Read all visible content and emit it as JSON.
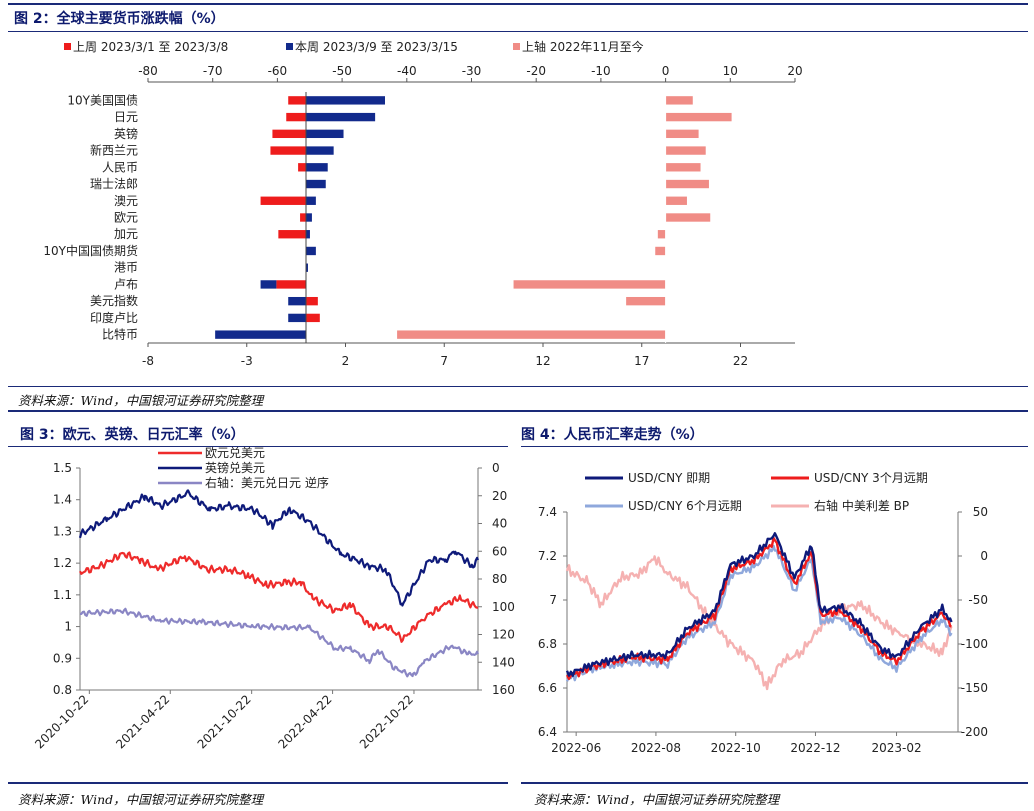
{
  "fig2": {
    "title": "图 2：全球主要货币涨跌幅（%）",
    "source": "资料来源：Wind，中国银河证券研究院整理"
  },
  "fig3": {
    "title": "图 3：欧元、英镑、日元汇率（%）",
    "source": "资料来源：Wind，中国银河证券研究院整理"
  },
  "fig4": {
    "title": "图 4：人民币汇率走势（%）",
    "source": "资料来源：Wind，中国银河证券研究院整理"
  },
  "chart_data": [
    {
      "id": "fig2",
      "type": "bar",
      "orientation": "horizontal",
      "categories": [
        "10Y美国国债",
        "日元",
        "英镑",
        "新西兰元",
        "人民币",
        "瑞士法郎",
        "澳元",
        "欧元",
        "加元",
        "10Y中国国债期货",
        "港币",
        "卢布",
        "美元指数",
        "印度卢比",
        "比特币"
      ],
      "series": [
        {
          "name": "上周 2023/3/1 至 2023/3/8",
          "axis": "bottom",
          "color": "#ee1c1c",
          "values": [
            -0.9,
            -1.0,
            -1.7,
            -1.8,
            -0.4,
            0,
            -2.3,
            -0.3,
            -1.4,
            0,
            0,
            -1.5,
            0.6,
            0.7,
            0
          ]
        },
        {
          "name": "本周 2023/3/9 至 2023/3/15",
          "axis": "bottom",
          "color": "#122a8c",
          "values": [
            4.0,
            3.5,
            1.9,
            1.4,
            1.1,
            1.0,
            0.5,
            0.3,
            0.2,
            0.5,
            0.1,
            -0.8,
            -0.9,
            -0.9,
            -4.6
          ]
        },
        {
          "name": "上轴 2022年11月至今",
          "axis": "top",
          "color": "#f08c86",
          "values": [
            4.2,
            10.2,
            5.1,
            6.2,
            5.4,
            6.7,
            3.3,
            6.9,
            -1.2,
            -1.6,
            0,
            -23.5,
            -6.1,
            0,
            -41.5
          ]
        }
      ],
      "xaxis_top": {
        "ticks": [
          -80,
          -70,
          -60,
          -50,
          -40,
          -30,
          -20,
          -10,
          0,
          10,
          20
        ],
        "range": [
          -80,
          20
        ]
      },
      "xaxis_bottom": {
        "ticks": [
          -8,
          -3,
          2,
          7,
          12,
          17,
          22
        ],
        "range": [
          -8,
          25
        ]
      },
      "legend": [
        "上周  2023/3/1  至  2023/3/8",
        "本周  2023/3/9  至  2023/3/15",
        "上轴  2022年11月至今"
      ],
      "legend_position": "top"
    },
    {
      "id": "fig3",
      "type": "line",
      "x": [
        "2020-10-22",
        "2021-04-22",
        "2021-10-22",
        "2022-04-22",
        "2022-10-22"
      ],
      "x_range": [
        "2020-10-01",
        "2023-03-15"
      ],
      "left_axis": {
        "ticks": [
          "0.8",
          "0.9",
          "1",
          "1.1",
          "1.2",
          "1.3",
          "1.4",
          "1.5"
        ],
        "range": [
          0.8,
          1.5
        ]
      },
      "right_axis": {
        "ticks": [
          "0",
          "20",
          "40",
          "60",
          "80",
          "100",
          "120",
          "140",
          "160"
        ],
        "range": [
          0,
          160
        ],
        "reversed": true
      },
      "series": [
        {
          "name": "欧元兑美元",
          "axis": "left",
          "color": "#ee2b2b",
          "points": [
            [
              "2020-10-01",
              1.17
            ],
            [
              "2020-11-15",
              1.19
            ],
            [
              "2021-01-05",
              1.23
            ],
            [
              "2021-02-15",
              1.21
            ],
            [
              "2021-03-25",
              1.18
            ],
            [
              "2021-05-25",
              1.22
            ],
            [
              "2021-07-15",
              1.18
            ],
            [
              "2021-09-05",
              1.18
            ],
            [
              "2021-10-15",
              1.16
            ],
            [
              "2021-11-25",
              1.13
            ],
            [
              "2022-01-10",
              1.14
            ],
            [
              "2022-02-10",
              1.14
            ],
            [
              "2022-03-08",
              1.09
            ],
            [
              "2022-04-28",
              1.05
            ],
            [
              "2022-06-01",
              1.07
            ],
            [
              "2022-07-14",
              1.0
            ],
            [
              "2022-08-25",
              1.0
            ],
            [
              "2022-09-27",
              0.96
            ],
            [
              "2022-11-15",
              1.03
            ],
            [
              "2023-01-01",
              1.07
            ],
            [
              "2023-02-02",
              1.09
            ],
            [
              "2023-03-15",
              1.06
            ]
          ]
        },
        {
          "name": "英镑兑美元",
          "axis": "left",
          "color": "#0e1a7a",
          "points": [
            [
              "2020-10-01",
              1.29
            ],
            [
              "2020-12-01",
              1.34
            ],
            [
              "2021-02-24",
              1.41
            ],
            [
              "2021-04-01",
              1.38
            ],
            [
              "2021-06-01",
              1.42
            ],
            [
              "2021-07-20",
              1.37
            ],
            [
              "2021-09-01",
              1.38
            ],
            [
              "2021-10-25",
              1.37
            ],
            [
              "2021-12-08",
              1.32
            ],
            [
              "2022-01-15",
              1.37
            ],
            [
              "2022-03-01",
              1.33
            ],
            [
              "2022-05-10",
              1.23
            ],
            [
              "2022-06-15",
              1.21
            ],
            [
              "2022-07-14",
              1.19
            ],
            [
              "2022-08-20",
              1.18
            ],
            [
              "2022-09-26",
              1.07
            ],
            [
              "2022-11-25",
              1.21
            ],
            [
              "2023-01-01",
              1.21
            ],
            [
              "2023-01-23",
              1.24
            ],
            [
              "2023-03-01",
              1.19
            ],
            [
              "2023-03-15",
              1.21
            ]
          ]
        },
        {
          "name": "右轴：美元兑日元 逆序",
          "axis": "right",
          "color": "#8a86c4",
          "points": [
            [
              "2020-10-01",
              105
            ],
            [
              "2021-01-05",
              103
            ],
            [
              "2021-04-01",
              110
            ],
            [
              "2021-07-01",
              111
            ],
            [
              "2021-10-25",
              114
            ],
            [
              "2022-01-05",
              115
            ],
            [
              "2022-03-01",
              115
            ],
            [
              "2022-04-28",
              130
            ],
            [
              "2022-06-01",
              130
            ],
            [
              "2022-07-14",
              139
            ],
            [
              "2022-08-02",
              131
            ],
            [
              "2022-09-07",
              144
            ],
            [
              "2022-10-20",
              150
            ],
            [
              "2022-11-15",
              139
            ],
            [
              "2023-01-16",
              128
            ],
            [
              "2023-02-20",
              134
            ],
            [
              "2023-03-15",
              134
            ]
          ]
        }
      ],
      "legend": [
        "欧元兑美元",
        "英镑兑美元",
        "右轴：美元兑日元 逆序"
      ],
      "legend_position": "top"
    },
    {
      "id": "fig4",
      "type": "line",
      "x": [
        "2022-06",
        "2022-08",
        "2022-10",
        "2022-12",
        "2023-02"
      ],
      "x_range": [
        "2022-05-25",
        "2023-03-20"
      ],
      "left_axis": {
        "ticks": [
          "6.4",
          "6.6",
          "6.8",
          "7",
          "7.2",
          "7.4"
        ],
        "range": [
          6.4,
          7.4
        ]
      },
      "right_axis": {
        "ticks": [
          "-200",
          "-150",
          "-100",
          "-50",
          "0",
          "50"
        ],
        "range": [
          -200,
          50
        ]
      },
      "series": [
        {
          "name": "USD/CNY 即期",
          "axis": "left",
          "color": "#0e1a7a",
          "points": [
            [
              "2022-05-25",
              6.66
            ],
            [
              "2022-06-15",
              6.71
            ],
            [
              "2022-07-15",
              6.75
            ],
            [
              "2022-08-10",
              6.75
            ],
            [
              "2022-08-25",
              6.87
            ],
            [
              "2022-09-15",
              6.95
            ],
            [
              "2022-09-27",
              7.16
            ],
            [
              "2022-10-15",
              7.2
            ],
            [
              "2022-10-31",
              7.3
            ],
            [
              "2022-11-15",
              7.1
            ],
            [
              "2022-11-28",
              7.25
            ],
            [
              "2022-12-05",
              6.95
            ],
            [
              "2022-12-20",
              6.97
            ],
            [
              "2023-01-05",
              6.89
            ],
            [
              "2023-01-20",
              6.78
            ],
            [
              "2023-02-01",
              6.74
            ],
            [
              "2023-02-20",
              6.88
            ],
            [
              "2023-03-08",
              6.96
            ],
            [
              "2023-03-15",
              6.9
            ]
          ]
        },
        {
          "name": "USD/CNY 3个月远期",
          "axis": "left",
          "color": "#ee1c1c",
          "points": [
            [
              "2022-05-25",
              6.65
            ],
            [
              "2022-06-15",
              6.7
            ],
            [
              "2022-07-15",
              6.74
            ],
            [
              "2022-08-10",
              6.73
            ],
            [
              "2022-08-25",
              6.85
            ],
            [
              "2022-09-15",
              6.93
            ],
            [
              "2022-09-27",
              7.14
            ],
            [
              "2022-10-15",
              7.18
            ],
            [
              "2022-10-31",
              7.27
            ],
            [
              "2022-11-15",
              7.07
            ],
            [
              "2022-11-28",
              7.22
            ],
            [
              "2022-12-05",
              6.93
            ],
            [
              "2022-12-20",
              6.95
            ],
            [
              "2023-01-05",
              6.87
            ],
            [
              "2023-01-20",
              6.76
            ],
            [
              "2023-02-01",
              6.72
            ],
            [
              "2023-02-20",
              6.86
            ],
            [
              "2023-03-08",
              6.94
            ],
            [
              "2023-03-15",
              6.88
            ]
          ]
        },
        {
          "name": "USD/CNY 6个月远期",
          "axis": "left",
          "color": "#8fa8dc",
          "points": [
            [
              "2022-05-25",
              6.64
            ],
            [
              "2022-06-15",
              6.69
            ],
            [
              "2022-07-15",
              6.72
            ],
            [
              "2022-08-10",
              6.71
            ],
            [
              "2022-08-25",
              6.83
            ],
            [
              "2022-09-15",
              6.9
            ],
            [
              "2022-09-27",
              7.11
            ],
            [
              "2022-10-15",
              7.15
            ],
            [
              "2022-10-31",
              7.24
            ],
            [
              "2022-11-15",
              7.04
            ],
            [
              "2022-11-28",
              7.19
            ],
            [
              "2022-12-05",
              6.9
            ],
            [
              "2022-12-20",
              6.92
            ],
            [
              "2023-01-05",
              6.84
            ],
            [
              "2023-01-20",
              6.73
            ],
            [
              "2023-02-01",
              6.69
            ],
            [
              "2023-02-20",
              6.83
            ],
            [
              "2023-03-08",
              6.91
            ],
            [
              "2023-03-15",
              6.85
            ]
          ]
        },
        {
          "name": "右轴 中美利差 BP",
          "axis": "right",
          "color": "#f5b1b1",
          "points": [
            [
              "2022-05-25",
              -15
            ],
            [
              "2022-06-10",
              -30
            ],
            [
              "2022-06-20",
              -55
            ],
            [
              "2022-07-05",
              -25
            ],
            [
              "2022-07-20",
              -20
            ],
            [
              "2022-07-31",
              -2
            ],
            [
              "2022-08-10",
              -20
            ],
            [
              "2022-08-25",
              -35
            ],
            [
              "2022-09-10",
              -70
            ],
            [
              "2022-09-27",
              -100
            ],
            [
              "2022-10-15",
              -120
            ],
            [
              "2022-10-25",
              -148
            ],
            [
              "2022-11-05",
              -120
            ],
            [
              "2022-11-20",
              -110
            ],
            [
              "2022-12-05",
              -80
            ],
            [
              "2022-12-20",
              -60
            ],
            [
              "2023-01-05",
              -55
            ],
            [
              "2023-01-20",
              -75
            ],
            [
              "2023-02-05",
              -90
            ],
            [
              "2023-02-20",
              -100
            ],
            [
              "2023-03-08",
              -110
            ],
            [
              "2023-03-15",
              -80
            ]
          ]
        }
      ],
      "legend": [
        "USD/CNY  即期",
        "USD/CNY  3个月远期",
        "USD/CNY  6个月远期",
        "右轴  中美利差  BP"
      ],
      "legend_position": "top"
    }
  ]
}
